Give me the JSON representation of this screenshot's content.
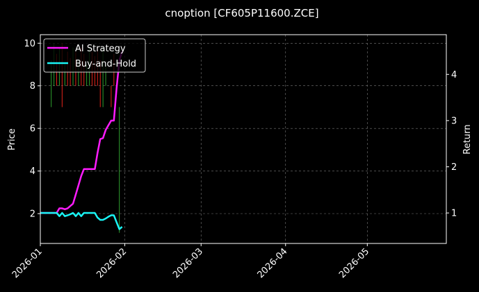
{
  "chart_data": {
    "type": "line",
    "title": "cnoption [CF605P11600.ZCE]",
    "ylabel": "Price",
    "y2label": "Return",
    "ylim": [
      0.6,
      10.4
    ],
    "yticks": [
      2,
      4,
      6,
      8,
      10
    ],
    "y2lim": [
      0.34,
      4.86
    ],
    "y2ticks": [
      1,
      2,
      3,
      4
    ],
    "xlim": [
      "2026-01-01",
      "2026-05-30"
    ],
    "xticks": [
      "2026-01",
      "2026-02",
      "2026-03",
      "2026-04",
      "2026-05"
    ],
    "grid": true,
    "legend_position": "top-left",
    "series": [
      {
        "name": "AI Strategy",
        "axis": "right",
        "color": "#ff1cff",
        "x": [
          "2026-01-01",
          "2026-01-02",
          "2026-01-03",
          "2026-01-04",
          "2026-01-05",
          "2026-01-06",
          "2026-01-07",
          "2026-01-08",
          "2026-01-09",
          "2026-01-10",
          "2026-01-11",
          "2026-01-12",
          "2026-01-13",
          "2026-01-14",
          "2026-01-15",
          "2026-01-16",
          "2026-01-17",
          "2026-01-18",
          "2026-01-19",
          "2026-01-20",
          "2026-01-21",
          "2026-01-22",
          "2026-01-23",
          "2026-01-24",
          "2026-01-25",
          "2026-01-26",
          "2026-01-27",
          "2026-01-28",
          "2026-01-29",
          "2026-01-30",
          "2026-01-31"
        ],
        "values": [
          1.0,
          1.0,
          1.0,
          1.0,
          1.0,
          1.0,
          1.0,
          1.1,
          1.1,
          1.08,
          1.1,
          1.15,
          1.2,
          1.4,
          1.6,
          1.8,
          1.95,
          1.95,
          1.95,
          1.95,
          1.95,
          2.3,
          2.6,
          2.62,
          2.8,
          2.9,
          3.0,
          3.0,
          3.7,
          4.3,
          4.5
        ]
      },
      {
        "name": "Buy-and-Hold",
        "axis": "right",
        "color": "#19f5f5",
        "x": [
          "2026-01-01",
          "2026-01-02",
          "2026-01-03",
          "2026-01-04",
          "2026-01-05",
          "2026-01-06",
          "2026-01-07",
          "2026-01-08",
          "2026-01-09",
          "2026-01-10",
          "2026-01-11",
          "2026-01-12",
          "2026-01-13",
          "2026-01-14",
          "2026-01-15",
          "2026-01-16",
          "2026-01-17",
          "2026-01-18",
          "2026-01-19",
          "2026-01-20",
          "2026-01-21",
          "2026-01-22",
          "2026-01-23",
          "2026-01-24",
          "2026-01-25",
          "2026-01-26",
          "2026-01-27",
          "2026-01-28",
          "2026-01-29",
          "2026-01-30",
          "2026-01-31"
        ],
        "values": [
          1.0,
          1.0,
          1.0,
          1.0,
          1.0,
          1.0,
          1.0,
          0.93,
          1.0,
          0.93,
          0.95,
          0.97,
          1.0,
          0.93,
          1.0,
          0.93,
          1.0,
          1.0,
          1.0,
          1.0,
          1.0,
          0.9,
          0.85,
          0.85,
          0.88,
          0.92,
          0.95,
          0.95,
          0.8,
          0.65,
          0.7
        ]
      }
    ],
    "bars": {
      "axis": "left",
      "up_color": "#2fa12f",
      "down_color": "#e5231a",
      "items": [
        {
          "x": "2026-01-05",
          "open": 8,
          "close": 8.3,
          "high": 9.2,
          "low": 7.0,
          "dir": "up"
        },
        {
          "x": "2026-01-06",
          "open": 8.5,
          "close": 8.0,
          "high": 10.0,
          "low": 8.0,
          "dir": "up"
        },
        {
          "x": "2026-01-07",
          "open": 8.5,
          "close": 8.0,
          "high": 9.5,
          "low": 8.0,
          "dir": "down"
        },
        {
          "x": "2026-01-08",
          "open": 8.5,
          "close": 8.0,
          "high": 9.8,
          "low": 8.0,
          "dir": "up"
        },
        {
          "x": "2026-01-09",
          "open": 8.3,
          "close": 8.0,
          "high": 10.0,
          "low": 7.0,
          "dir": "down"
        },
        {
          "x": "2026-01-10",
          "open": 8.5,
          "close": 8.0,
          "high": 9.0,
          "low": 8.0,
          "dir": "up"
        },
        {
          "x": "2026-01-11",
          "open": 8.5,
          "close": 8.0,
          "high": 9.6,
          "low": 8.0,
          "dir": "down"
        },
        {
          "x": "2026-01-12",
          "open": 8.5,
          "close": 8.0,
          "high": 9.3,
          "low": 8.0,
          "dir": "down"
        },
        {
          "x": "2026-01-13",
          "open": 8.5,
          "close": 8.0,
          "high": 9.8,
          "low": 8.0,
          "dir": "up"
        },
        {
          "x": "2026-01-14",
          "open": 8.5,
          "close": 8.0,
          "high": 9.6,
          "low": 8.0,
          "dir": "down"
        },
        {
          "x": "2026-01-15",
          "open": 8.5,
          "close": 8.0,
          "high": 9.2,
          "low": 8.0,
          "dir": "up"
        },
        {
          "x": "2026-01-16",
          "open": 8.5,
          "close": 8.0,
          "high": 9.8,
          "low": 8.0,
          "dir": "down"
        },
        {
          "x": "2026-01-17",
          "open": 8.5,
          "close": 8.0,
          "high": 9.5,
          "low": 8.0,
          "dir": "down"
        },
        {
          "x": "2026-01-18",
          "open": 8.5,
          "close": 8.0,
          "high": 9.0,
          "low": 8.0,
          "dir": "up"
        },
        {
          "x": "2026-01-19",
          "open": 8.5,
          "close": 8.0,
          "high": 9.8,
          "low": 8.0,
          "dir": "up"
        },
        {
          "x": "2026-01-20",
          "open": 8.5,
          "close": 8.0,
          "high": 9.6,
          "low": 8.0,
          "dir": "down"
        },
        {
          "x": "2026-01-21",
          "open": 8.5,
          "close": 8.0,
          "high": 9.4,
          "low": 8.0,
          "dir": "down"
        },
        {
          "x": "2026-01-22",
          "open": 8.5,
          "close": 8.0,
          "high": 9.8,
          "low": 8.0,
          "dir": "down"
        },
        {
          "x": "2026-01-23",
          "open": 8.5,
          "close": 8.0,
          "high": 9.2,
          "low": 7.0,
          "dir": "down"
        },
        {
          "x": "2026-01-24",
          "open": 8.5,
          "close": 8.0,
          "high": 9.8,
          "low": 7.0,
          "dir": "up"
        },
        {
          "x": "2026-01-25",
          "open": 8.5,
          "close": 8.0,
          "high": 9.0,
          "low": 8.0,
          "dir": "up"
        },
        {
          "x": "2026-01-27",
          "open": 8.0,
          "close": 7.5,
          "high": 8.0,
          "low": 7.0,
          "dir": "down"
        },
        {
          "x": "2026-01-28",
          "open": 8.5,
          "close": 8.0,
          "high": 9.5,
          "low": 8.0,
          "dir": "down"
        },
        {
          "x": "2026-01-30",
          "open": 7.0,
          "close": 7.0,
          "high": 7.0,
          "low": 1.1,
          "dir": "up"
        }
      ]
    }
  }
}
